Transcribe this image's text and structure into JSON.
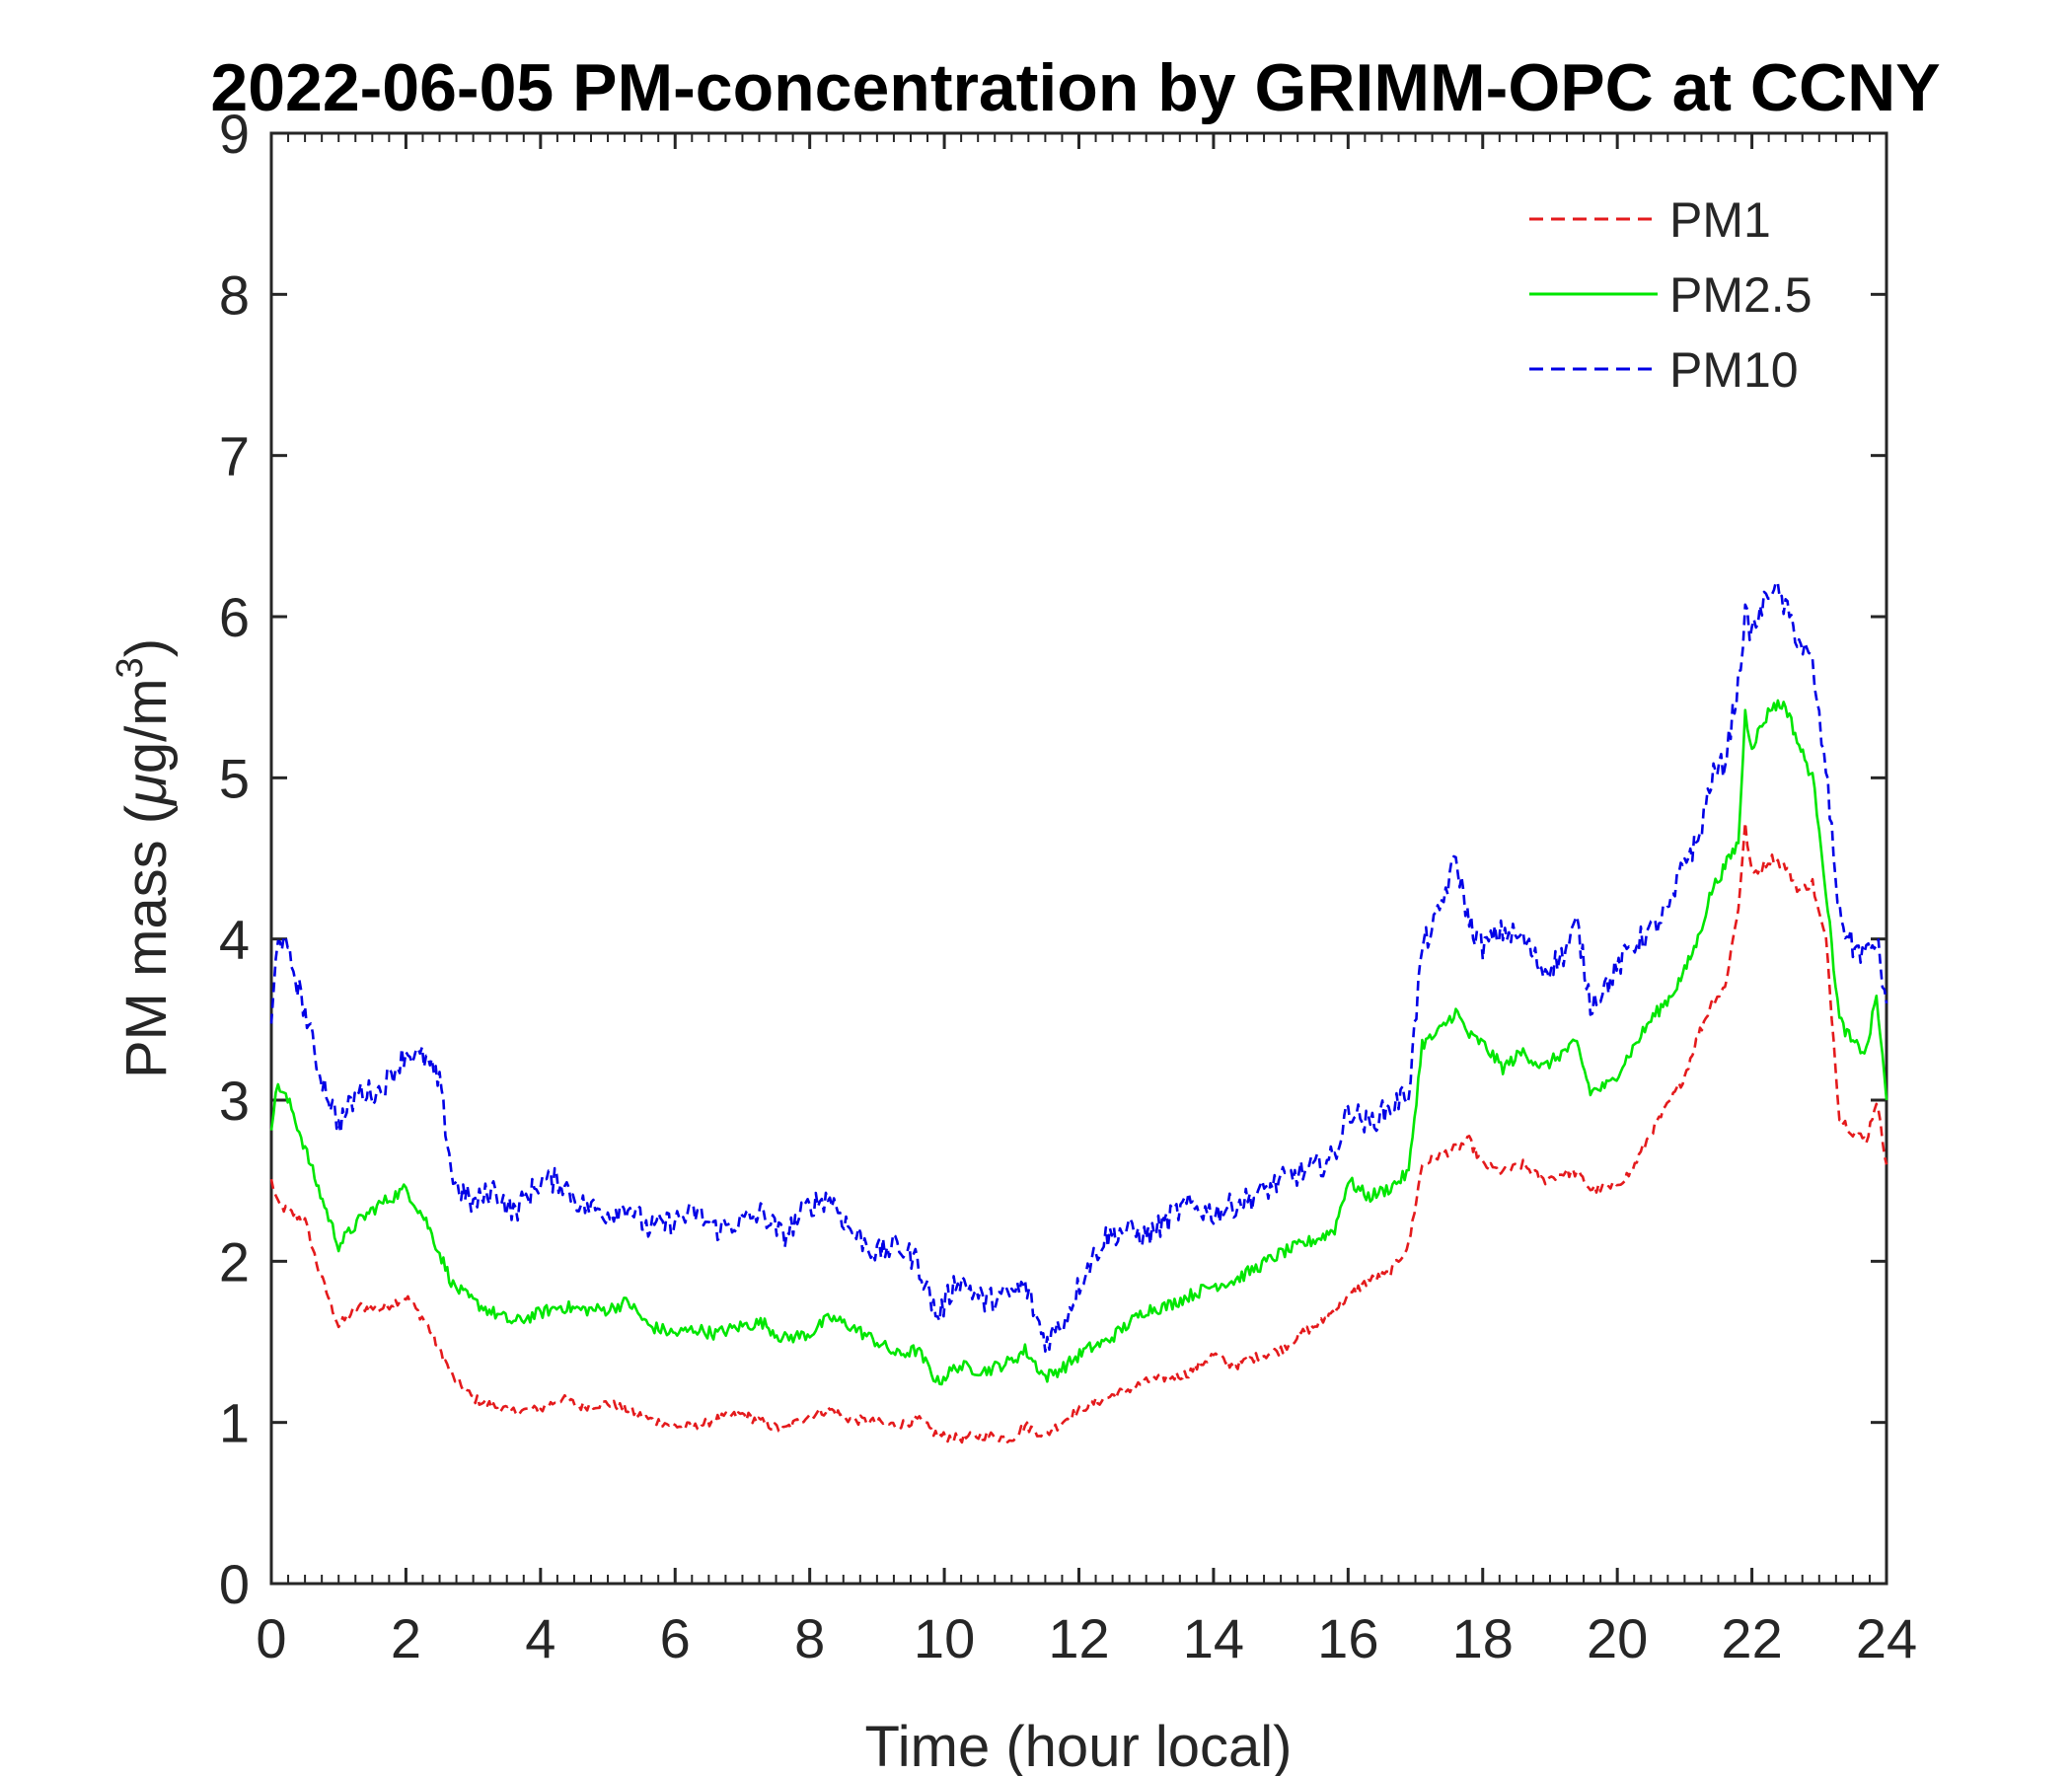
{
  "chart_data": {
    "type": "line",
    "title": "2022-06-05 PM-concentration by GRIMM-OPC at CCNY",
    "xlabel": "Time (hour local)",
    "ylabel_main": "PM mass (",
    "ylabel_mu": "μ",
    "ylabel_unit": "g/m",
    "ylabel_sup": "3",
    "ylabel_close": ")",
    "xlim": [
      0,
      24
    ],
    "ylim": [
      0,
      9
    ],
    "xticks": [
      0,
      2,
      4,
      6,
      8,
      10,
      12,
      14,
      16,
      18,
      20,
      22,
      24
    ],
    "yticks": [
      0,
      1,
      2,
      3,
      4,
      5,
      6,
      7,
      8,
      9
    ],
    "legend_position": "top-right",
    "x": [
      0,
      0.1,
      0.3,
      0.5,
      0.7,
      1.0,
      1.3,
      1.6,
      2.0,
      2.3,
      2.5,
      2.7,
      3.0,
      3.3,
      3.6,
      4.0,
      4.3,
      4.6,
      5.0,
      5.3,
      5.6,
      6.0,
      6.3,
      6.6,
      7.0,
      7.3,
      7.6,
      8.0,
      8.3,
      8.6,
      9.0,
      9.3,
      9.6,
      9.9,
      10.2,
      10.6,
      11.0,
      11.2,
      11.5,
      11.8,
      12.1,
      12.4,
      12.7,
      13.0,
      13.3,
      13.6,
      14.0,
      14.3,
      14.6,
      15.0,
      15.3,
      15.6,
      15.8,
      16.0,
      16.3,
      16.6,
      16.9,
      17.1,
      17.3,
      17.6,
      17.8,
      18.0,
      18.3,
      18.6,
      18.9,
      19.2,
      19.4,
      19.6,
      19.9,
      20.2,
      20.5,
      20.8,
      21.0,
      21.2,
      21.4,
      21.6,
      21.8,
      21.9,
      22.0,
      22.3,
      22.5,
      22.7,
      22.9,
      23.0,
      23.1,
      23.3,
      23.5,
      23.7,
      23.85,
      24.0
    ],
    "series": [
      {
        "name": "PM1",
        "color": "#e41a1c",
        "style": "dashed",
        "values": [
          2.5,
          2.35,
          2.3,
          2.25,
          1.95,
          1.6,
          1.72,
          1.7,
          1.78,
          1.62,
          1.45,
          1.28,
          1.15,
          1.1,
          1.07,
          1.08,
          1.15,
          1.1,
          1.12,
          1.08,
          1.02,
          0.98,
          0.97,
          1.02,
          1.05,
          1.0,
          0.95,
          1.05,
          1.08,
          1.02,
          1.0,
          0.98,
          1.02,
          0.92,
          0.9,
          0.92,
          0.9,
          0.98,
          0.92,
          1.02,
          1.1,
          1.15,
          1.2,
          1.25,
          1.28,
          1.3,
          1.42,
          1.35,
          1.4,
          1.45,
          1.55,
          1.62,
          1.7,
          1.78,
          1.88,
          1.92,
          2.1,
          2.6,
          2.65,
          2.7,
          2.75,
          2.6,
          2.55,
          2.6,
          2.5,
          2.55,
          2.55,
          2.45,
          2.45,
          2.55,
          2.8,
          3.0,
          3.15,
          3.4,
          3.6,
          3.7,
          4.2,
          4.7,
          4.4,
          4.5,
          4.45,
          4.3,
          4.35,
          4.15,
          4.0,
          2.9,
          2.8,
          2.75,
          3.0,
          2.6
        ]
      },
      {
        "name": "PM2.5",
        "color": "#00e600",
        "style": "solid",
        "values": [
          2.85,
          3.1,
          2.95,
          2.7,
          2.45,
          2.1,
          2.25,
          2.35,
          2.45,
          2.25,
          2.05,
          1.85,
          1.75,
          1.68,
          1.62,
          1.68,
          1.72,
          1.7,
          1.7,
          1.75,
          1.6,
          1.55,
          1.58,
          1.55,
          1.6,
          1.62,
          1.52,
          1.55,
          1.65,
          1.6,
          1.5,
          1.42,
          1.45,
          1.25,
          1.35,
          1.32,
          1.38,
          1.45,
          1.28,
          1.35,
          1.45,
          1.5,
          1.6,
          1.7,
          1.72,
          1.78,
          1.85,
          1.88,
          1.95,
          2.05,
          2.1,
          2.15,
          2.2,
          2.5,
          2.4,
          2.45,
          2.55,
          3.35,
          3.4,
          3.55,
          3.4,
          3.35,
          3.2,
          3.3,
          3.2,
          3.3,
          3.35,
          3.05,
          3.1,
          3.3,
          3.5,
          3.65,
          3.8,
          4.0,
          4.3,
          4.45,
          4.6,
          5.4,
          5.2,
          5.45,
          5.45,
          5.2,
          5.0,
          4.7,
          4.3,
          3.5,
          3.35,
          3.3,
          3.65,
          3.0
        ]
      },
      {
        "name": "PM10",
        "color": "#0000e6",
        "style": "dashed",
        "values": [
          3.45,
          4.05,
          3.85,
          3.55,
          3.2,
          2.85,
          3.05,
          3.05,
          3.3,
          3.25,
          3.1,
          2.5,
          2.35,
          2.45,
          2.3,
          2.5,
          2.5,
          2.35,
          2.3,
          2.35,
          2.2,
          2.25,
          2.3,
          2.2,
          2.25,
          2.3,
          2.15,
          2.35,
          2.4,
          2.2,
          2.05,
          2.1,
          2.0,
          1.65,
          1.9,
          1.75,
          1.8,
          1.85,
          1.5,
          1.65,
          1.95,
          2.15,
          2.2,
          2.15,
          2.25,
          2.35,
          2.3,
          2.35,
          2.4,
          2.5,
          2.55,
          2.6,
          2.65,
          2.95,
          2.85,
          2.95,
          3.05,
          3.95,
          4.1,
          4.5,
          4.1,
          3.95,
          4.05,
          4.0,
          3.8,
          3.9,
          4.1,
          3.6,
          3.75,
          3.95,
          4.05,
          4.2,
          4.5,
          4.6,
          5.0,
          5.1,
          5.6,
          6.0,
          5.9,
          6.2,
          6.05,
          5.85,
          5.7,
          5.35,
          5.05,
          4.15,
          3.95,
          3.9,
          4.0,
          3.6
        ]
      }
    ]
  }
}
